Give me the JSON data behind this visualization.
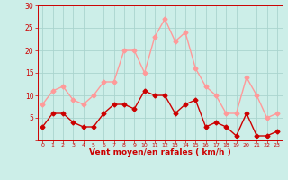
{
  "hours": [
    0,
    1,
    2,
    3,
    4,
    5,
    6,
    7,
    8,
    9,
    10,
    11,
    12,
    13,
    14,
    15,
    16,
    17,
    18,
    19,
    20,
    21,
    22,
    23
  ],
  "wind_mean": [
    3,
    6,
    6,
    4,
    3,
    3,
    6,
    8,
    8,
    7,
    11,
    10,
    10,
    6,
    8,
    9,
    3,
    4,
    3,
    1,
    6,
    1,
    1,
    2
  ],
  "wind_gust": [
    8,
    11,
    12,
    9,
    8,
    10,
    13,
    13,
    20,
    20,
    15,
    23,
    27,
    22,
    24,
    16,
    12,
    10,
    6,
    6,
    14,
    10,
    5,
    6
  ],
  "xlabel": "Vent moyen/en rafales ( km/h )",
  "ylim": [
    0,
    30
  ],
  "yticks": [
    0,
    5,
    10,
    15,
    20,
    25,
    30
  ],
  "xlim": [
    -0.5,
    23.5
  ],
  "bg_color": "#cceee8",
  "grid_color": "#aad4ce",
  "mean_color": "#cc0000",
  "gust_color": "#ff9999",
  "tick_label_color": "#cc0000",
  "xlabel_color": "#cc0000",
  "markersize": 2.5,
  "linewidth": 1.0
}
